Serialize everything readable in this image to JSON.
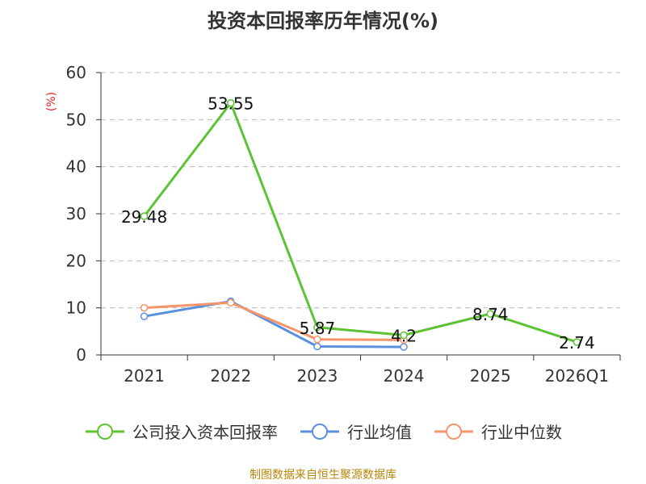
{
  "title": "投资本回报率历年情况(%)",
  "source": "制图数据来自恒生聚源数据库",
  "colors": {
    "company": "#5cc433",
    "industry_avg": "#5b8fe0",
    "industry_median": "#f4956a",
    "unit_label": "#e52222",
    "grid": "#bbbbbb",
    "axis": "#333333"
  },
  "chart_data": {
    "type": "line",
    "title": "投资本回报率历年情况(%)",
    "ylabel": "(%)",
    "xlabel": "",
    "ylim": [
      0,
      60
    ],
    "yticks": [
      0,
      10,
      20,
      30,
      40,
      50,
      60
    ],
    "categories": [
      "2021",
      "2022",
      "2023",
      "2024",
      "2025",
      "2026Q1"
    ],
    "grid": true,
    "legend_position": "bottom",
    "series": [
      {
        "name": "公司投入资本回报率",
        "color_key": "company",
        "values": [
          29.48,
          53.55,
          5.87,
          4.2,
          8.74,
          2.74
        ],
        "labels": [
          "29.48",
          "53.55",
          "5.87",
          "4.2",
          "8.74",
          "2.74"
        ]
      },
      {
        "name": "行业均值",
        "color_key": "industry_avg",
        "values": [
          8.2,
          11.4,
          1.8,
          1.7,
          null,
          null
        ]
      },
      {
        "name": "行业中位数",
        "color_key": "industry_median",
        "values": [
          10.0,
          11.1,
          3.3,
          3.2,
          null,
          null
        ]
      }
    ]
  }
}
